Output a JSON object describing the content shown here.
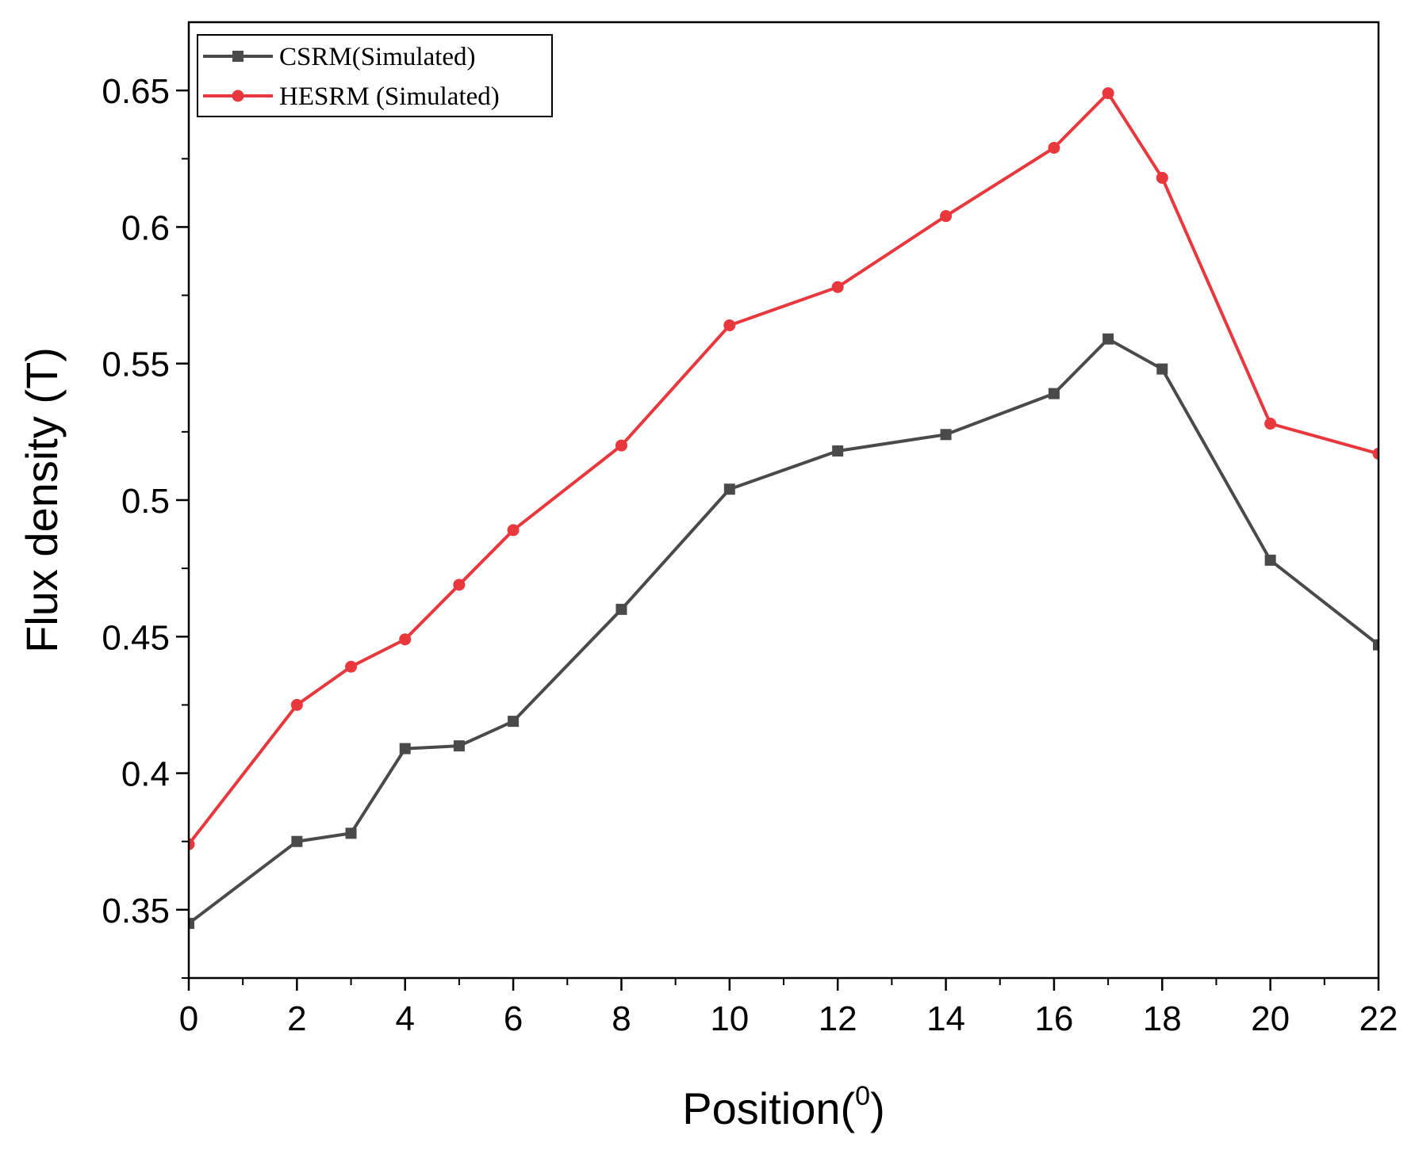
{
  "chart_data": {
    "type": "line",
    "title": "",
    "xlabel": "Position(",
    "xlabel_sup": "0",
    "xlabel_suffix": ")",
    "ylabel": "Flux density (T)",
    "xlim": [
      0,
      22
    ],
    "ylim": [
      0.325,
      0.675
    ],
    "xticks": [
      0,
      2,
      4,
      6,
      8,
      10,
      12,
      14,
      16,
      18,
      20,
      22
    ],
    "xtick_labels": [
      "0",
      "2",
      "4",
      "6",
      "8",
      "10",
      "12",
      "14",
      "16",
      "18",
      "20",
      "22"
    ],
    "yticks": [
      0.35,
      0.4,
      0.45,
      0.5,
      0.55,
      0.6,
      0.65
    ],
    "ytick_labels": [
      "0.35",
      "0.4",
      "0.45",
      "0.5",
      "0.55",
      "0.6",
      "0.65"
    ],
    "legend_position": "top-left",
    "grid": false,
    "series": [
      {
        "name": "CSRM(Simulated)",
        "color": "#4a4a4a",
        "marker": "square",
        "x": [
          0,
          2,
          3,
          4,
          5,
          6,
          8,
          10,
          12,
          14,
          16,
          17,
          18,
          20,
          22
        ],
        "y": [
          0.345,
          0.375,
          0.378,
          0.409,
          0.41,
          0.419,
          0.46,
          0.504,
          0.518,
          0.524,
          0.539,
          0.559,
          0.548,
          0.478,
          0.447
        ]
      },
      {
        "name": "HESRM (Simulated)",
        "color": "#e8383d",
        "marker": "circle",
        "x": [
          0,
          2,
          3,
          4,
          5,
          6,
          8,
          10,
          12,
          14,
          16,
          17,
          18,
          20,
          22
        ],
        "y": [
          0.374,
          0.425,
          0.439,
          0.449,
          0.469,
          0.489,
          0.52,
          0.564,
          0.578,
          0.604,
          0.629,
          0.649,
          0.618,
          0.528,
          0.517
        ]
      }
    ]
  }
}
